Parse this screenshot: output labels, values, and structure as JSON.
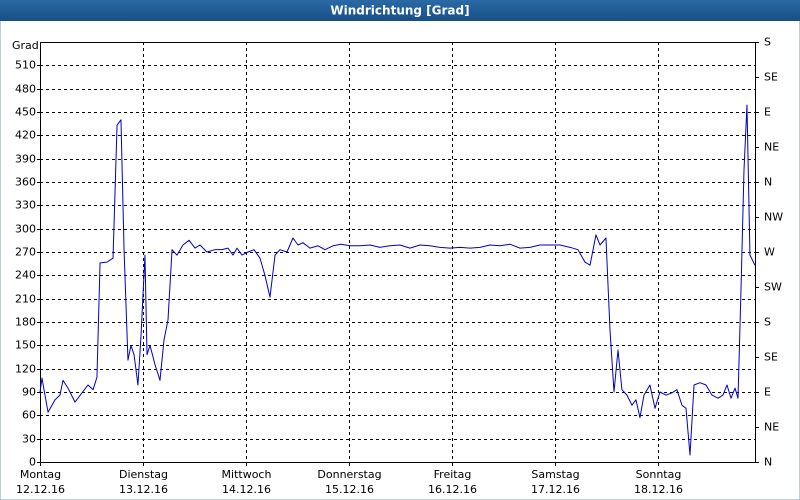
{
  "chart_data": {
    "type": "line",
    "title": "Windrichtung [Grad]",
    "y_label": "Grad",
    "xlim": [
      0,
      6.942
    ],
    "xticks": [
      {
        "value": 0,
        "label": [
          "Montag",
          "12.12.16"
        ]
      },
      {
        "value": 1,
        "label": [
          "Dienstag",
          "13.12.16"
        ]
      },
      {
        "value": 2,
        "label": [
          "Mittwoch",
          "14.12.16"
        ]
      },
      {
        "value": 3,
        "label": [
          "Donnerstag",
          "15.12.16"
        ]
      },
      {
        "value": 4,
        "label": [
          "Freitag",
          "16.12.16"
        ]
      },
      {
        "value": 5,
        "label": [
          "Samstag",
          "17.12.16"
        ]
      },
      {
        "value": 6,
        "label": [
          "Sonntag",
          "18.12.16"
        ]
      }
    ],
    "ylim": [
      0,
      540
    ],
    "yticks": [
      0,
      30,
      60,
      90,
      120,
      150,
      180,
      210,
      240,
      270,
      300,
      330,
      360,
      390,
      420,
      450,
      480,
      510
    ],
    "y2lim": [
      0,
      540
    ],
    "y2ticks": [
      {
        "value": 0,
        "label": "N"
      },
      {
        "value": 45,
        "label": "NE"
      },
      {
        "value": 90,
        "label": "E"
      },
      {
        "value": 135,
        "label": "SE"
      },
      {
        "value": 180,
        "label": "S"
      },
      {
        "value": 225,
        "label": "SW"
      },
      {
        "value": 270,
        "label": "W"
      },
      {
        "value": 315,
        "label": "NW"
      },
      {
        "value": 360,
        "label": "N"
      },
      {
        "value": 405,
        "label": "NE"
      },
      {
        "value": 450,
        "label": "E"
      },
      {
        "value": 495,
        "label": "SE"
      },
      {
        "value": 540,
        "label": "S"
      }
    ],
    "grid": true,
    "series": [
      {
        "color": "#0000c8",
        "x": [
          0,
          0.019,
          0.078,
          0.146,
          0.194,
          0.223,
          0.272,
          0.34,
          0.408,
          0.466,
          0.515,
          0.553,
          0.583,
          0.65,
          0.709,
          0.748,
          0.786,
          0.816,
          0.854,
          0.883,
          0.913,
          0.951,
          0.981,
          1.019,
          1.039,
          1.068,
          1.117,
          1.165,
          1.204,
          1.243,
          1.282,
          1.33,
          1.388,
          1.447,
          1.505,
          1.553,
          1.621,
          1.699,
          1.767,
          1.825,
          1.874,
          1.913,
          1.961,
          2.019,
          2.078,
          2.136,
          2.184,
          2.233,
          2.282,
          2.33,
          2.398,
          2.456,
          2.505,
          2.553,
          2.621,
          2.699,
          2.767,
          2.845,
          2.922,
          3.01,
          3.107,
          3.204,
          3.301,
          3.398,
          3.495,
          3.592,
          3.689,
          3.786,
          3.883,
          3.981,
          4.078,
          4.175,
          4.272,
          4.369,
          4.466,
          4.563,
          4.66,
          4.757,
          4.854,
          4.951,
          5.049,
          5.146,
          5.223,
          5.291,
          5.34,
          5.398,
          5.437,
          5.495,
          5.534,
          5.573,
          5.612,
          5.65,
          5.699,
          5.748,
          5.786,
          5.825,
          5.864,
          5.922,
          5.971,
          6.019,
          6.078,
          6.136,
          6.184,
          6.233,
          6.272,
          6.311,
          6.35,
          6.408,
          6.466,
          6.524,
          6.583,
          6.631,
          6.67,
          6.709,
          6.748,
          6.777,
          6.806,
          6.835,
          6.864,
          6.893,
          6.942
        ],
        "values": [
          90,
          108,
          64,
          80,
          86,
          105,
          95,
          77,
          89,
          99,
          93,
          109,
          256,
          257,
          262,
          433,
          440,
          273,
          131,
          150,
          138,
          99,
          163,
          266,
          138,
          150,
          125,
          105,
          157,
          183,
          273,
          266,
          279,
          285,
          275,
          279,
          270,
          273,
          273,
          275,
          266,
          275,
          266,
          270,
          273,
          262,
          240,
          212,
          266,
          273,
          270,
          288,
          279,
          282,
          275,
          278,
          273,
          278,
          280,
          278,
          278,
          279,
          276,
          278,
          279,
          275,
          279,
          278,
          276,
          275,
          276,
          275,
          276,
          279,
          278,
          280,
          275,
          276,
          279,
          279,
          279,
          276,
          273,
          257,
          253,
          292,
          279,
          288,
          170,
          90,
          144,
          93,
          86,
          73,
          80,
          57,
          86,
          99,
          69,
          90,
          86,
          89,
          93,
          73,
          69,
          9,
          99,
          102,
          99,
          86,
          82,
          86,
          99,
          82,
          95,
          82,
          221,
          375,
          459,
          266,
          253
        ]
      }
    ]
  }
}
